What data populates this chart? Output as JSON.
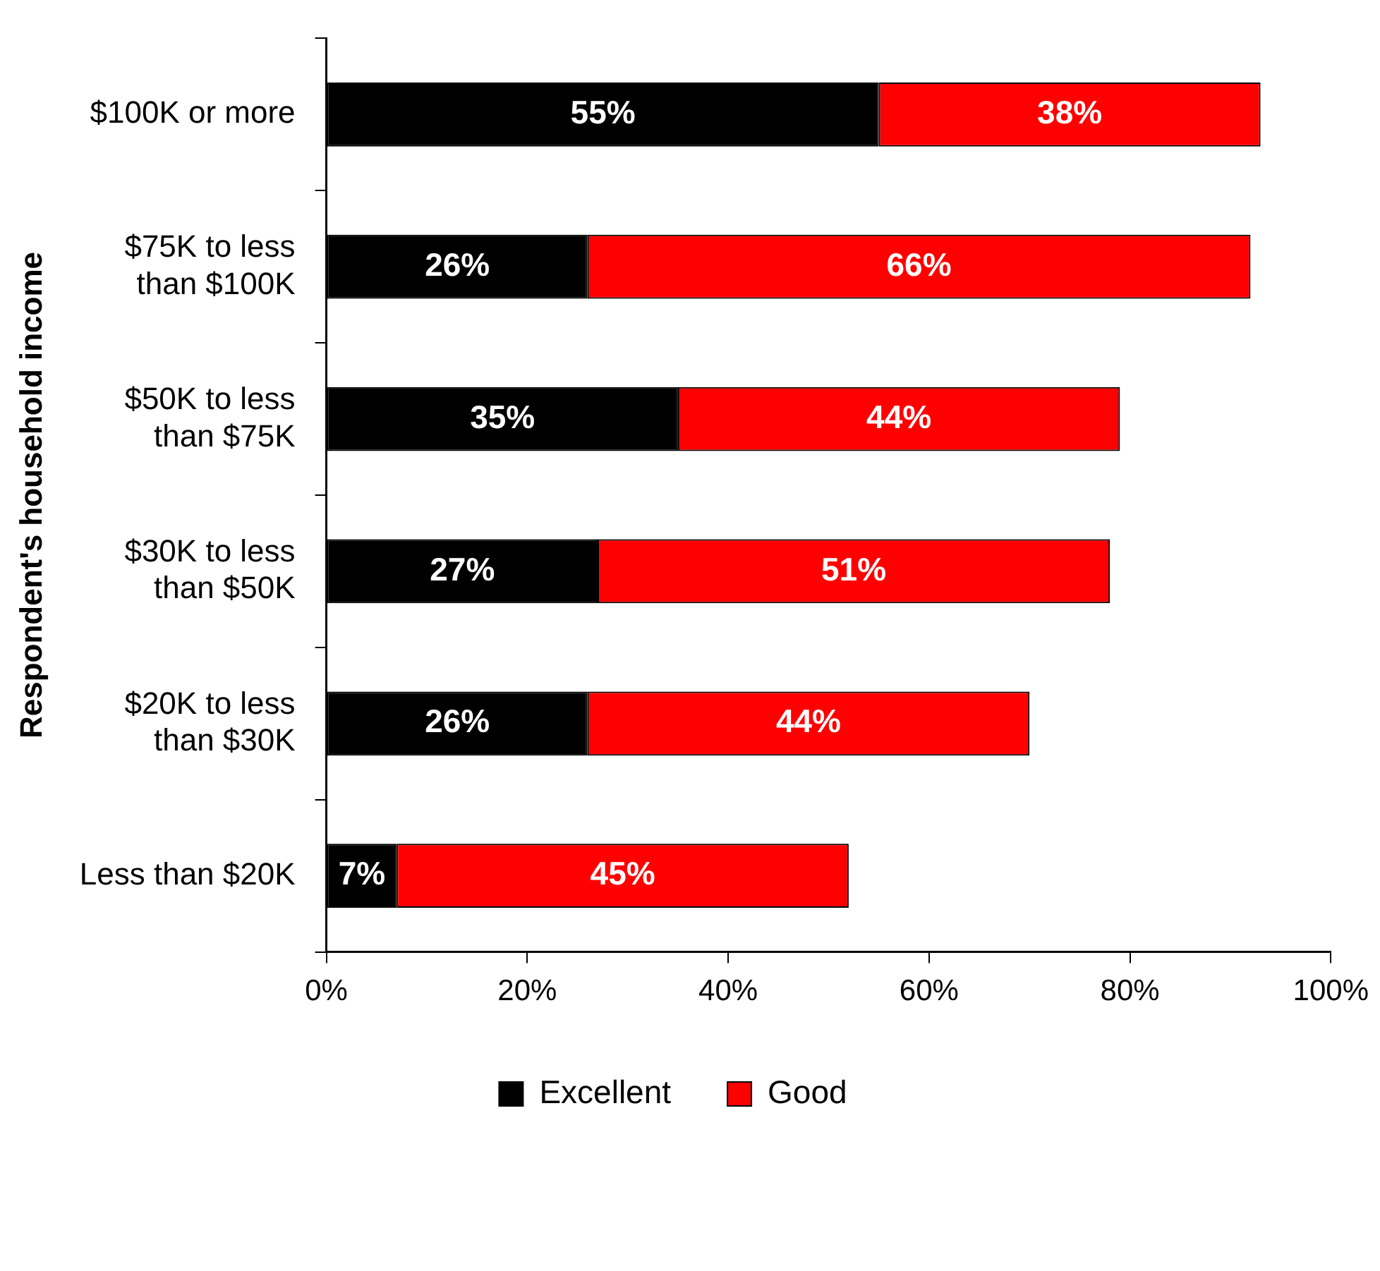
{
  "chart_data": {
    "type": "bar",
    "orientation": "horizontal",
    "stacked": true,
    "ylabel": "Respondent's household income",
    "categories": [
      "$100K or more",
      "$75K to less\nthan $100K",
      "$50K to less\nthan $75K",
      "$30K to less\nthan $50K",
      "$20K to less\nthan $30K",
      "Less than $20K"
    ],
    "series": [
      {
        "name": "Excellent",
        "color": "#000000",
        "values": [
          55,
          26,
          35,
          27,
          26,
          7
        ],
        "value_labels": [
          "55%",
          "26%",
          "35%",
          "27%",
          "26%",
          "7%"
        ]
      },
      {
        "name": "Good",
        "color": "#ff0000",
        "values": [
          38,
          66,
          44,
          51,
          44,
          45
        ],
        "value_labels": [
          "38%",
          "66%",
          "44%",
          "51%",
          "44%",
          "45%"
        ]
      }
    ],
    "xlim": [
      0,
      100
    ],
    "xticks": [
      {
        "value": 0,
        "label": "0%"
      },
      {
        "value": 20,
        "label": "20%"
      },
      {
        "value": 40,
        "label": "40%"
      },
      {
        "value": 60,
        "label": "60%"
      },
      {
        "value": 80,
        "label": "80%"
      },
      {
        "value": 100,
        "label": "100%"
      }
    ],
    "grid": false,
    "legend": "bottom"
  }
}
